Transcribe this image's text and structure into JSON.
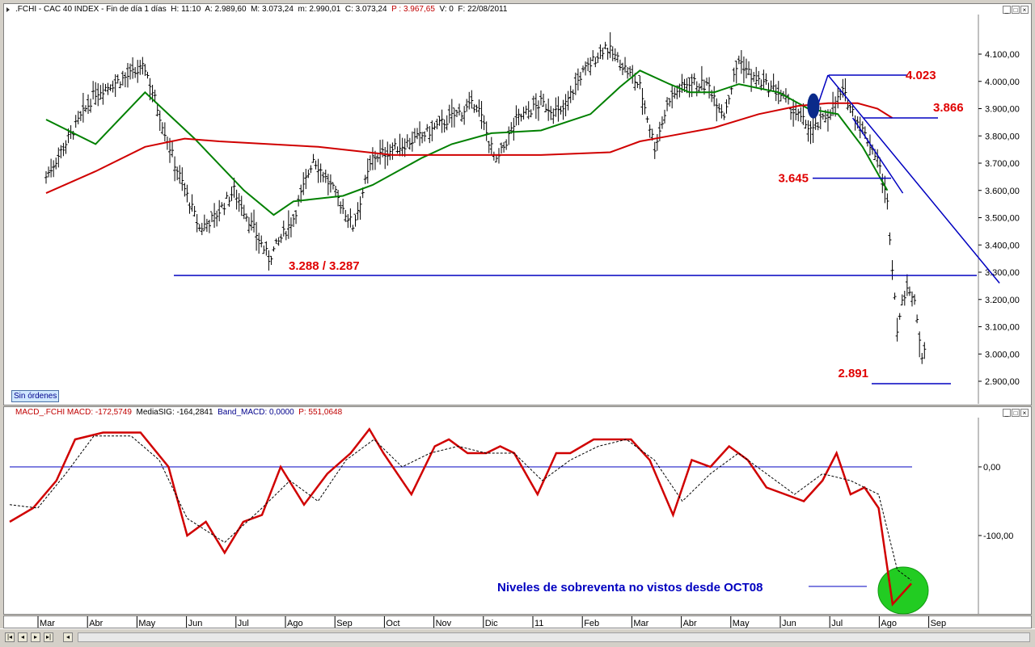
{
  "price_panel": {
    "header": {
      "symbol": ".FCHI - CAC 40 INDEX - Fin de día 1 días",
      "h": "H: 11:10",
      "a": "A: 2.989,60",
      "m": "M: 3.073,24",
      "min": "m: 2.990,01",
      "c": "C: 3.073,24",
      "p": "P : 3.967,65",
      "v": "V: 0",
      "f": "F: 22/08/2011"
    },
    "badge": "Sin órdenes"
  },
  "macd_panel": {
    "header": {
      "macd": "MACD_.FCHI MACD: -172,5749",
      "sig": "MediaSIG: -164,2841",
      "band": "Band_MACD: 0,0000",
      "p": "P: 551,0648"
    },
    "note": "Niveles de sobreventa no vistos desde OCT08"
  },
  "window_buttons": [
    "minimize-button",
    "restore-button",
    "close-button"
  ],
  "chart_data": [
    {
      "type": "ohlc",
      "x_labels": [
        "Mar",
        "Abr",
        "May",
        "Jun",
        "Jul",
        "Ago",
        "Sep",
        "Oct",
        "Nov",
        "Dic",
        "11",
        "Feb",
        "Mar",
        "Abr",
        "May",
        "Jun",
        "Jul",
        "Ago",
        "Sep"
      ],
      "y_ticks": [
        "4.100,00",
        "4.000,00",
        "3.900,00",
        "3.800,00",
        "3.700,00",
        "3.600,00",
        "3.500,00",
        "3.400,00",
        "3.300,00",
        "3.200,00",
        "3.100,00",
        "3.000,00",
        "2.900,00"
      ],
      "ylim": [
        2850,
        4180
      ],
      "close_points": [
        [
          0,
          3650
        ],
        [
          1,
          3960
        ],
        [
          2,
          4050
        ],
        [
          2.6,
          3700
        ],
        [
          3.1,
          3460
        ],
        [
          3.4,
          3500
        ],
        [
          3.8,
          3600
        ],
        [
          4.5,
          3350
        ],
        [
          5,
          3500
        ],
        [
          5.4,
          3720
        ],
        [
          5.8,
          3600
        ],
        [
          6.2,
          3470
        ],
        [
          6.6,
          3720
        ],
        [
          7,
          3750
        ],
        [
          7.6,
          3800
        ],
        [
          8.3,
          3880
        ],
        [
          8.7,
          3920
        ],
        [
          9.1,
          3700
        ],
        [
          9.5,
          3860
        ],
        [
          10,
          3920
        ],
        [
          10.4,
          3880
        ],
        [
          10.8,
          4020
        ],
        [
          11.3,
          4130
        ],
        [
          11.6,
          4070
        ],
        [
          12,
          3980
        ],
        [
          12.3,
          3760
        ],
        [
          12.6,
          3940
        ],
        [
          13,
          4000
        ],
        [
          13.4,
          3980
        ],
        [
          13.7,
          3880
        ],
        [
          14,
          4080
        ],
        [
          14.3,
          4010
        ],
        [
          14.8,
          3960
        ],
        [
          15.2,
          3870
        ],
        [
          15.5,
          3820
        ],
        [
          15.8,
          3880
        ],
        [
          16.1,
          3960
        ],
        [
          16.5,
          3820
        ],
        [
          16.8,
          3720
        ],
        [
          17,
          3550
        ],
        [
          17.2,
          3100
        ],
        [
          17.4,
          3260
        ],
        [
          17.55,
          3180
        ],
        [
          17.7,
          3000
        ],
        [
          17.8,
          3070
        ]
      ],
      "levels": [
        {
          "label": "4.023",
          "value": 4023
        },
        {
          "label": "3.866",
          "value": 3866
        },
        {
          "label": "3.645",
          "value": 3645
        },
        {
          "label": "3.288 / 3.287",
          "value": 3288
        },
        {
          "label": "2.891",
          "value": 2891
        }
      ],
      "series": [
        {
          "name": "",
          "color": "#008000",
          "points": [
            [
              0,
              3860
            ],
            [
              1,
              3770
            ],
            [
              2,
              3960
            ],
            [
              3,
              3790
            ],
            [
              4,
              3600
            ],
            [
              4.6,
              3510
            ],
            [
              5,
              3560
            ],
            [
              6,
              3580
            ],
            [
              6.6,
              3620
            ],
            [
              7.6,
              3720
            ],
            [
              8.2,
              3770
            ],
            [
              9,
              3810
            ],
            [
              10,
              3820
            ],
            [
              11,
              3880
            ],
            [
              11.6,
              3980
            ],
            [
              12,
              4040
            ],
            [
              12.6,
              3990
            ],
            [
              13,
              3960
            ],
            [
              13.5,
              3960
            ],
            [
              14,
              3990
            ],
            [
              14.8,
              3960
            ],
            [
              15.4,
              3900
            ],
            [
              16,
              3880
            ],
            [
              16.5,
              3760
            ],
            [
              17,
              3600
            ]
          ]
        },
        {
          "name": "",
          "color": "#d00000",
          "points": [
            [
              0,
              3590
            ],
            [
              1,
              3670
            ],
            [
              2,
              3760
            ],
            [
              2.8,
              3790
            ],
            [
              3.5,
              3780
            ],
            [
              4.5,
              3770
            ],
            [
              5.5,
              3760
            ],
            [
              7,
              3730
            ],
            [
              8.5,
              3730
            ],
            [
              10,
              3730
            ],
            [
              11.4,
              3740
            ],
            [
              12,
              3780
            ],
            [
              12.6,
              3800
            ],
            [
              13.5,
              3830
            ],
            [
              14.4,
              3880
            ],
            [
              15.2,
              3910
            ],
            [
              15.8,
              3920
            ],
            [
              16.4,
              3920
            ],
            [
              16.8,
              3900
            ],
            [
              17.1,
              3866
            ]
          ]
        }
      ],
      "annotations": [
        "Blue oval marking the crossover of the two moving averages",
        "Down-trend line from the 4.023 high"
      ]
    },
    {
      "type": "line",
      "x_labels": [
        "Mar",
        "Abr",
        "May",
        "Jun",
        "Jul",
        "Ago",
        "Sep",
        "Oct",
        "Nov",
        "Dic",
        "11",
        "Feb",
        "Mar",
        "Abr",
        "May",
        "Jun",
        "Jul",
        "Ago",
        "Sep"
      ],
      "y_ticks": [
        "0,00",
        "-100,00"
      ],
      "ylim": [
        -215,
        75
      ],
      "zero_line": 0,
      "series": [
        {
          "name": "MACD",
          "color": "#d00000",
          "points": [
            [
              0,
              -80
            ],
            [
              0.5,
              -60
            ],
            [
              1,
              -20
            ],
            [
              1.4,
              40
            ],
            [
              2,
              50
            ],
            [
              2.8,
              50
            ],
            [
              3.4,
              0
            ],
            [
              3.8,
              -100
            ],
            [
              4.2,
              -80
            ],
            [
              4.6,
              -125
            ],
            [
              5,
              -80
            ],
            [
              5.4,
              -70
            ],
            [
              5.8,
              0
            ],
            [
              6.3,
              -55
            ],
            [
              6.8,
              -10
            ],
            [
              7.3,
              20
            ],
            [
              7.7,
              55
            ],
            [
              8,
              20
            ],
            [
              8.6,
              -40
            ],
            [
              9.1,
              30
            ],
            [
              9.4,
              40
            ],
            [
              9.8,
              20
            ],
            [
              10.2,
              20
            ],
            [
              10.5,
              30
            ],
            [
              10.8,
              20
            ],
            [
              11.3,
              -40
            ],
            [
              11.7,
              20
            ],
            [
              12,
              20
            ],
            [
              12.5,
              40
            ],
            [
              12.9,
              40
            ],
            [
              13.3,
              40
            ],
            [
              13.7,
              10
            ],
            [
              14.2,
              -70
            ],
            [
              14.6,
              10
            ],
            [
              15,
              0
            ],
            [
              15.4,
              30
            ],
            [
              15.8,
              10
            ],
            [
              16.2,
              -30
            ],
            [
              16.6,
              -40
            ],
            [
              17,
              -50
            ],
            [
              17.4,
              -20
            ],
            [
              17.7,
              20
            ],
            [
              18,
              -40
            ],
            [
              18.3,
              -30
            ],
            [
              18.6,
              -60
            ],
            [
              18.9,
              -200
            ],
            [
              19.1,
              -185
            ],
            [
              19.3,
              -170
            ]
          ]
        },
        {
          "name": "MediaSIG",
          "color": "#000000",
          "points": [
            [
              0,
              -55
            ],
            [
              0.6,
              -60
            ],
            [
              1.2,
              -10
            ],
            [
              1.8,
              45
            ],
            [
              2.6,
              45
            ],
            [
              3.2,
              10
            ],
            [
              3.8,
              -75
            ],
            [
              4.6,
              -110
            ],
            [
              5.4,
              -60
            ],
            [
              6,
              -20
            ],
            [
              6.6,
              -50
            ],
            [
              7.2,
              10
            ],
            [
              7.8,
              40
            ],
            [
              8.4,
              0
            ],
            [
              9,
              20
            ],
            [
              9.6,
              30
            ],
            [
              10.2,
              20
            ],
            [
              10.8,
              20
            ],
            [
              11.4,
              -20
            ],
            [
              12,
              10
            ],
            [
              12.6,
              30
            ],
            [
              13.2,
              40
            ],
            [
              13.8,
              10
            ],
            [
              14.4,
              -50
            ],
            [
              15,
              -10
            ],
            [
              15.6,
              20
            ],
            [
              16.2,
              -10
            ],
            [
              16.8,
              -40
            ],
            [
              17.4,
              -10
            ],
            [
              18,
              -20
            ],
            [
              18.6,
              -40
            ],
            [
              19,
              -150
            ],
            [
              19.3,
              -165
            ]
          ]
        }
      ]
    }
  ]
}
